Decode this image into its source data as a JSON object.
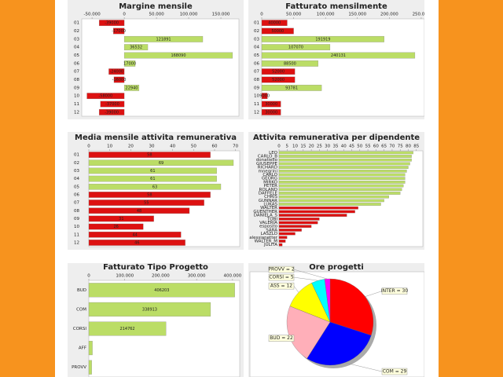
{
  "chart_data": [
    {
      "type": "bar",
      "orientation": "horizontal",
      "title": "Margine mensile",
      "categories": [
        "01",
        "02",
        "03",
        "04",
        "05",
        "06",
        "07",
        "08",
        "09",
        "10",
        "11",
        "12"
      ],
      "values": [
        -39000,
        -17000,
        121891,
        36532,
        168090,
        17000,
        -24000,
        -16000,
        22940,
        -58000,
        -37000,
        -39000
      ],
      "colors": [
        "#dd1111",
        "#dd1111",
        "#bbdd66",
        "#bbdd66",
        "#bbdd66",
        "#bbdd66",
        "#dd1111",
        "#dd1111",
        "#bbdd66",
        "#dd1111",
        "#dd1111",
        "#dd1111"
      ],
      "show_values": true,
      "xlim": [
        -66000,
        178000
      ],
      "xticks": [
        {
          "value": -50000,
          "label": "-50.000"
        },
        0,
        {
          "value": 50000,
          "label": "50.000"
        },
        {
          "value": 100000,
          "label": "100.000"
        },
        {
          "value": 150000,
          "label": "150.000"
        }
      ]
    },
    {
      "type": "bar",
      "orientation": "horizontal",
      "title": "Fatturato mensilmente",
      "categories": [
        "01",
        "02",
        "03",
        "04",
        "05",
        "06",
        "07",
        "08",
        "09",
        "10",
        "11",
        "12"
      ],
      "values": [
        40000,
        50000,
        191919,
        107070,
        240131,
        88500,
        52000,
        52000,
        93781,
        9000,
        30000,
        30000
      ],
      "colors": [
        "#dd1111",
        "#dd1111",
        "#bbdd66",
        "#bbdd66",
        "#bbdd66",
        "#bbdd66",
        "#dd1111",
        "#dd1111",
        "#bbdd66",
        "#dd1111",
        "#dd1111",
        "#dd1111"
      ],
      "show_values": true,
      "xlim": [
        0,
        255000
      ],
      "xticks": [
        0,
        {
          "value": 50000,
          "label": "50.000"
        },
        {
          "value": 100000,
          "label": "100.000"
        },
        {
          "value": 150000,
          "label": "150.000"
        },
        {
          "value": 200000,
          "label": "200.000"
        },
        {
          "value": 250000,
          "label": "250.000"
        }
      ]
    },
    {
      "type": "bar",
      "orientation": "horizontal",
      "title": "Media mensile attivita remunerativa",
      "categories": [
        "01",
        "02",
        "03",
        "04",
        "05",
        "06",
        "07",
        "08",
        "09",
        "10",
        "11",
        "12"
      ],
      "values": [
        58,
        69,
        61,
        61,
        63,
        58,
        55,
        48,
        31,
        26,
        44,
        46
      ],
      "colors": [
        "#dd1111",
        "#bbdd66",
        "#bbdd66",
        "#bbdd66",
        "#bbdd66",
        "#dd1111",
        "#dd1111",
        "#dd1111",
        "#dd1111",
        "#dd1111",
        "#dd1111",
        "#dd1111"
      ],
      "show_values": true,
      "xlim": [
        0,
        72
      ],
      "xticks": [
        0,
        10,
        20,
        30,
        40,
        50,
        60,
        70
      ]
    },
    {
      "type": "bar",
      "orientation": "horizontal",
      "title": "Attivita remunerativa per dipendente",
      "categories": [
        "LEO",
        "CARLO_B",
        "donatiello",
        "GIUSEPPE",
        "RICHARD",
        "mnegrini",
        "CARLO",
        "GEORG",
        "MIRKO",
        "PETER",
        "ROLAND",
        "DAFFELE",
        "CHRIS",
        "GUNNAR",
        "LUKAS",
        "WALTER",
        "GUENTHER",
        "DANIELA_S",
        "TOBI",
        "VALERIA",
        "esposito",
        "SARA",
        "LASZLO",
        "alessianetter",
        "WALTER_M",
        "JULITA"
      ],
      "values": [
        83,
        82,
        82,
        81,
        80,
        79,
        78,
        78,
        78,
        77,
        76,
        75,
        68,
        65,
        63,
        49,
        47,
        42,
        25,
        24,
        20,
        14,
        10,
        5,
        4,
        2
      ],
      "colors": [
        "#bbdd66",
        "#bbdd66",
        "#bbdd66",
        "#bbdd66",
        "#bbdd66",
        "#bbdd66",
        "#bbdd66",
        "#bbdd66",
        "#bbdd66",
        "#bbdd66",
        "#bbdd66",
        "#bbdd66",
        "#bbdd66",
        "#bbdd66",
        "#bbdd66",
        "#dd1111",
        "#dd1111",
        "#dd1111",
        "#dd1111",
        "#dd1111",
        "#dd1111",
        "#dd1111",
        "#dd1111",
        "#dd1111",
        "#dd1111",
        "#dd1111"
      ],
      "show_values": false,
      "xlim": [
        0,
        89
      ],
      "xticks": [
        0,
        5,
        10,
        15,
        20,
        25,
        30,
        35,
        40,
        45,
        50,
        55,
        60,
        65,
        70,
        75,
        80,
        85
      ]
    },
    {
      "type": "bar",
      "orientation": "horizontal",
      "title": "Fatturato Tipo Progetto",
      "categories": [
        "BUD",
        "COM",
        "CORSI",
        "AFF",
        "PROVV"
      ],
      "values": [
        406203,
        338913,
        214762,
        10000,
        8000
      ],
      "colors": [
        "#bbdd66",
        "#bbdd66",
        "#bbdd66",
        "#bbdd66",
        "#bbdd66"
      ],
      "show_values": true,
      "show_values_min": 100000,
      "xlim": [
        0,
        420000
      ],
      "xticks": [
        0,
        {
          "value": 100000,
          "label": "100.000"
        },
        {
          "value": 200000,
          "label": "200.000"
        },
        {
          "value": 300000,
          "label": "300.000"
        },
        {
          "value": 400000,
          "label": "400.000"
        }
      ]
    },
    {
      "type": "pie",
      "title": "Ore progetti",
      "values": [
        30,
        29,
        22,
        12,
        5,
        2
      ],
      "value_labels": [
        "INTER = 30",
        "COM = 29",
        "BUD = 22",
        "ASS = 12",
        "CORSI = 5",
        "PROVV = 2"
      ],
      "colors": [
        "#ff0000",
        "#0000ff",
        "#ffafb9",
        "#ffff00",
        "#00ffff",
        "#ff00ff"
      ]
    }
  ]
}
